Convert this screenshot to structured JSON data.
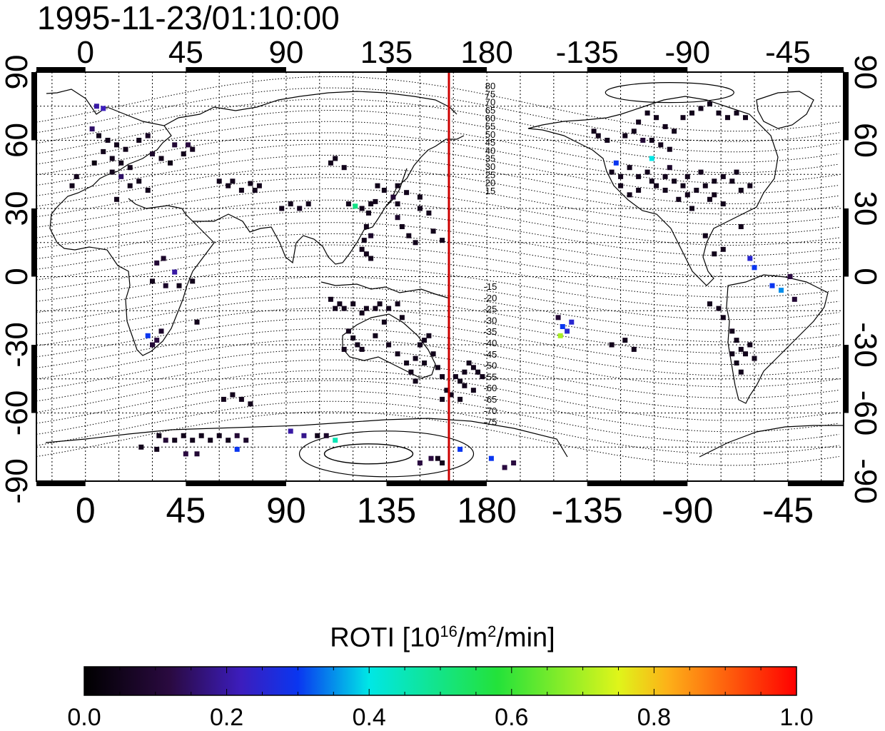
{
  "title": "1995-11-23/01:10:00",
  "x_axis": {
    "tick_labels": [
      "0",
      "45",
      "90",
      "135",
      "180",
      "-135",
      "-90",
      "-45"
    ]
  },
  "y_axis": {
    "tick_labels": [
      "90",
      "60",
      "30",
      "0",
      "-30",
      "-60",
      "-90"
    ]
  },
  "map_range": {
    "lon": [
      -22,
      340
    ],
    "lat": [
      -90,
      90
    ]
  },
  "terminator_longitude": 163,
  "contour_labels_north": [
    "80",
    "75",
    "70",
    "65",
    "60",
    "55",
    "50",
    "45",
    "40",
    "35",
    "30",
    "25",
    "20",
    "15"
  ],
  "contour_labels_south": [
    "-15",
    "-20",
    "-25",
    "-30",
    "-35",
    "-40",
    "-45",
    "-50",
    "-55",
    "-60",
    "-65",
    "-70",
    "-75"
  ],
  "colorbar": {
    "title_main": "ROTI  [10",
    "title_exp1": "16",
    "title_mid": "/m",
    "title_exp2": "2",
    "title_end": "/min]",
    "tick_labels": [
      "0.0",
      "0.2",
      "0.4",
      "0.6",
      "0.8",
      "1.0"
    ],
    "range": [
      0.0,
      1.0
    ]
  },
  "colors": {
    "terminator": "#cc0000",
    "background": "#ffffff"
  },
  "chart_data": {
    "type": "heatmap",
    "title": "1995-11-23/01:10:00",
    "colorbar_label": "ROTI  [10^16/m^2/min]",
    "value_range": [
      0.0,
      1.0
    ],
    "points": [
      [
        5,
        75,
        0.2
      ],
      [
        8,
        74,
        0.22
      ],
      [
        3,
        65,
        0.15
      ],
      [
        6,
        62,
        0.05
      ],
      [
        10,
        60,
        0.05
      ],
      [
        14,
        58,
        0.05
      ],
      [
        18,
        56,
        0.05
      ],
      [
        8,
        55,
        0.05
      ],
      [
        12,
        52,
        0.05
      ],
      [
        16,
        50,
        0.05
      ],
      [
        20,
        48,
        0.05
      ],
      [
        4,
        50,
        0.03
      ],
      [
        24,
        60,
        0.05
      ],
      [
        28,
        62,
        0.07
      ],
      [
        30,
        54,
        0.08
      ],
      [
        34,
        52,
        0.05
      ],
      [
        38,
        50,
        0.04
      ],
      [
        40,
        58,
        0.1
      ],
      [
        44,
        54,
        0.05
      ],
      [
        48,
        56,
        0.06
      ],
      [
        46,
        58,
        0.12
      ],
      [
        12,
        46,
        0.05
      ],
      [
        16,
        44,
        0.15
      ],
      [
        20,
        40,
        0.05
      ],
      [
        24,
        42,
        0.05
      ],
      [
        -6,
        40,
        0.05
      ],
      [
        -4,
        44,
        0.05
      ],
      [
        28,
        38,
        0.05
      ],
      [
        14,
        34,
        0.05
      ],
      [
        60,
        42,
        0.05
      ],
      [
        64,
        40,
        0.05
      ],
      [
        66,
        42,
        0.05
      ],
      [
        70,
        38,
        0.05
      ],
      [
        74,
        41,
        0.05
      ],
      [
        78,
        40,
        0.05
      ],
      [
        76,
        38,
        0.05
      ],
      [
        88,
        30,
        0.05
      ],
      [
        92,
        32,
        0.05
      ],
      [
        96,
        30,
        0.06
      ],
      [
        100,
        32,
        0.05
      ],
      [
        110,
        50,
        0.05
      ],
      [
        112,
        52,
        0.05
      ],
      [
        116,
        48,
        0.05
      ],
      [
        118,
        32,
        0.05
      ],
      [
        121,
        31,
        0.5
      ],
      [
        124,
        30,
        0.05
      ],
      [
        127,
        28,
        0.05
      ],
      [
        128,
        32,
        0.05
      ],
      [
        130,
        33,
        0.05
      ],
      [
        131,
        40,
        0.05
      ],
      [
        134,
        38,
        0.05
      ],
      [
        140,
        40,
        0.05
      ],
      [
        144,
        37,
        0.05
      ],
      [
        138,
        35,
        0.1
      ],
      [
        140,
        32,
        0.05
      ],
      [
        150,
        30,
        0.05
      ],
      [
        154,
        28,
        0.05
      ],
      [
        140,
        26,
        0.08
      ],
      [
        142,
        22,
        0.05
      ],
      [
        145,
        18,
        0.05
      ],
      [
        148,
        15,
        0.05
      ],
      [
        126,
        22,
        0.05
      ],
      [
        128,
        18,
        0.08
      ],
      [
        125,
        16,
        0.05
      ],
      [
        124,
        12,
        0.05
      ],
      [
        126,
        10,
        0.05
      ],
      [
        128,
        8,
        0.05
      ],
      [
        150,
        35,
        0.05
      ],
      [
        156,
        20,
        0.05
      ],
      [
        160,
        16,
        0.05
      ],
      [
        32,
        6,
        0.1
      ],
      [
        35,
        8,
        0.08
      ],
      [
        30,
        -2,
        0.05
      ],
      [
        36,
        -4,
        0.08
      ],
      [
        40,
        2,
        0.2
      ],
      [
        42,
        -4,
        0.05
      ],
      [
        48,
        -2,
        0.05
      ],
      [
        28,
        -26,
        0.3
      ],
      [
        30,
        -30,
        0.1
      ],
      [
        32,
        -28,
        0.12
      ],
      [
        34,
        -24,
        0.08
      ],
      [
        50,
        -20,
        0.05
      ],
      [
        110,
        -10,
        0.05
      ],
      [
        112,
        -14,
        0.05
      ],
      [
        114,
        -12,
        0.05
      ],
      [
        116,
        -14,
        0.05
      ],
      [
        120,
        -12,
        0.05
      ],
      [
        124,
        -16,
        0.05
      ],
      [
        126,
        -14,
        0.05
      ],
      [
        130,
        -14,
        0.05
      ],
      [
        132,
        -12,
        0.05
      ],
      [
        136,
        -14,
        0.05
      ],
      [
        140,
        -12,
        0.05
      ],
      [
        142,
        -18,
        0.05
      ],
      [
        118,
        -24,
        0.05
      ],
      [
        120,
        -27,
        0.05
      ],
      [
        122,
        -30,
        0.05
      ],
      [
        116,
        -32,
        0.05
      ],
      [
        124,
        -32,
        0.05
      ],
      [
        130,
        -26,
        0.05
      ],
      [
        134,
        -20,
        0.05
      ],
      [
        136,
        -30,
        0.05
      ],
      [
        140,
        -34,
        0.05
      ],
      [
        144,
        -38,
        0.05
      ],
      [
        146,
        -42,
        0.05
      ],
      [
        148,
        -36,
        0.05
      ],
      [
        150,
        -30,
        0.05
      ],
      [
        152,
        -28,
        0.05
      ],
      [
        154,
        -26,
        0.05
      ],
      [
        156,
        -34,
        0.05
      ],
      [
        158,
        -40,
        0.05
      ],
      [
        160,
        -44,
        0.05
      ],
      [
        152,
        -38,
        0.05
      ],
      [
        148,
        -46,
        0.05
      ],
      [
        162,
        -50,
        0.05
      ],
      [
        166,
        -44,
        0.05
      ],
      [
        168,
        -46,
        0.05
      ],
      [
        170,
        -42,
        0.05
      ],
      [
        172,
        -38,
        0.05
      ],
      [
        174,
        -40,
        0.05
      ],
      [
        176,
        -42,
        0.05
      ],
      [
        178,
        -44,
        0.05
      ],
      [
        170,
        -48,
        0.05
      ],
      [
        174,
        -50,
        0.05
      ],
      [
        168,
        -54,
        0.05
      ],
      [
        164,
        -52,
        0.05
      ],
      [
        160,
        -54,
        0.05
      ],
      [
        62,
        -54,
        0.05
      ],
      [
        66,
        -52,
        0.05
      ],
      [
        70,
        -54,
        0.05
      ],
      [
        74,
        -56,
        0.05
      ],
      [
        33,
        -70,
        0.05
      ],
      [
        36,
        -72,
        0.1
      ],
      [
        40,
        -72,
        0.05
      ],
      [
        44,
        -70,
        0.05
      ],
      [
        48,
        -72,
        0.05
      ],
      [
        52,
        -70,
        0.05
      ],
      [
        56,
        -72,
        0.05
      ],
      [
        60,
        -70,
        0.05
      ],
      [
        64,
        -72,
        0.05
      ],
      [
        68,
        -70,
        0.1
      ],
      [
        72,
        -72,
        0.08
      ],
      [
        25,
        -75,
        0.05
      ],
      [
        32,
        -76,
        0.05
      ],
      [
        45,
        -78,
        0.12
      ],
      [
        50,
        -78,
        0.1
      ],
      [
        68,
        -76,
        0.3
      ],
      [
        92,
        -68,
        0.2
      ],
      [
        98,
        -70,
        0.18
      ],
      [
        104,
        -70,
        0.05
      ],
      [
        108,
        -70,
        0.08
      ],
      [
        112,
        -72,
        0.45
      ],
      [
        150,
        -82,
        0.12
      ],
      [
        155,
        -80,
        0.12
      ],
      [
        158,
        -80,
        0.05
      ],
      [
        160,
        -82,
        0.05
      ],
      [
        168,
        -76,
        0.3
      ],
      [
        182,
        -80,
        0.3
      ],
      [
        188,
        -84,
        0.12
      ],
      [
        192,
        -82,
        0.12
      ],
      [
        212,
        -18,
        0.1
      ],
      [
        214,
        -22,
        0.3
      ],
      [
        216,
        -24,
        0.25
      ],
      [
        218,
        -20,
        0.25
      ],
      [
        213,
        -26,
        0.7
      ],
      [
        236,
        -30,
        0.05
      ],
      [
        242,
        -28,
        0.05
      ],
      [
        246,
        -32,
        0.05
      ],
      [
        228,
        64,
        0.05
      ],
      [
        230,
        62,
        0.05
      ],
      [
        234,
        60,
        0.05
      ],
      [
        242,
        62,
        0.05
      ],
      [
        246,
        64,
        0.05
      ],
      [
        254,
        60,
        0.05
      ],
      [
        260,
        66,
        0.05
      ],
      [
        264,
        64,
        0.05
      ],
      [
        268,
        70,
        0.05
      ],
      [
        272,
        72,
        0.05
      ],
      [
        276,
        74,
        0.05
      ],
      [
        280,
        76,
        0.05
      ],
      [
        284,
        72,
        0.05
      ],
      [
        288,
        70,
        0.05
      ],
      [
        292,
        72,
        0.05
      ],
      [
        296,
        70,
        0.05
      ],
      [
        256,
        70,
        0.05
      ],
      [
        252,
        72,
        0.05
      ],
      [
        248,
        68,
        0.05
      ],
      [
        250,
        60,
        0.1
      ],
      [
        258,
        58,
        0.05
      ],
      [
        262,
        56,
        0.05
      ],
      [
        236,
        46,
        0.05
      ],
      [
        238,
        50,
        0.3
      ],
      [
        240,
        44,
        0.05
      ],
      [
        244,
        48,
        0.05
      ],
      [
        248,
        44,
        0.05
      ],
      [
        252,
        46,
        0.05
      ],
      [
        254,
        42,
        0.05
      ],
      [
        248,
        38,
        0.05
      ],
      [
        244,
        36,
        0.05
      ],
      [
        240,
        40,
        0.05
      ],
      [
        256,
        40,
        0.05
      ],
      [
        260,
        38,
        0.05
      ],
      [
        264,
        42,
        0.05
      ],
      [
        268,
        40,
        0.05
      ],
      [
        270,
        36,
        0.05
      ],
      [
        274,
        38,
        0.05
      ],
      [
        278,
        40,
        0.05
      ],
      [
        282,
        42,
        0.05
      ],
      [
        286,
        44,
        0.05
      ],
      [
        290,
        42,
        0.05
      ],
      [
        292,
        46,
        0.05
      ],
      [
        270,
        44,
        0.05
      ],
      [
        276,
        46,
        0.05
      ],
      [
        282,
        36,
        0.05
      ],
      [
        286,
        32,
        0.05
      ],
      [
        260,
        44,
        0.05
      ],
      [
        254,
        52,
        0.4
      ],
      [
        262,
        48,
        0.08
      ],
      [
        280,
        34,
        0.05
      ],
      [
        294,
        38,
        0.05
      ],
      [
        298,
        40,
        0.05
      ],
      [
        272,
        30,
        0.05
      ],
      [
        266,
        34,
        0.05
      ],
      [
        278,
        18,
        0.05
      ],
      [
        282,
        10,
        0.05
      ],
      [
        286,
        12,
        0.05
      ],
      [
        294,
        22,
        0.05
      ],
      [
        298,
        8,
        0.25
      ],
      [
        300,
        4,
        0.3
      ],
      [
        308,
        -4,
        0.3
      ],
      [
        312,
        -6,
        0.35
      ],
      [
        316,
        0,
        0.12
      ],
      [
        318,
        -10,
        0.1
      ],
      [
        280,
        -12,
        0.05
      ],
      [
        284,
        -14,
        0.05
      ],
      [
        286,
        -18,
        0.05
      ],
      [
        290,
        -24,
        0.05
      ],
      [
        292,
        -28,
        0.05
      ],
      [
        294,
        -32,
        0.05
      ],
      [
        290,
        -34,
        0.05
      ],
      [
        292,
        -38,
        0.05
      ],
      [
        296,
        -34,
        0.05
      ],
      [
        298,
        -30,
        0.05
      ],
      [
        300,
        -36,
        0.05
      ],
      [
        294,
        -42,
        0.05
      ]
    ]
  }
}
